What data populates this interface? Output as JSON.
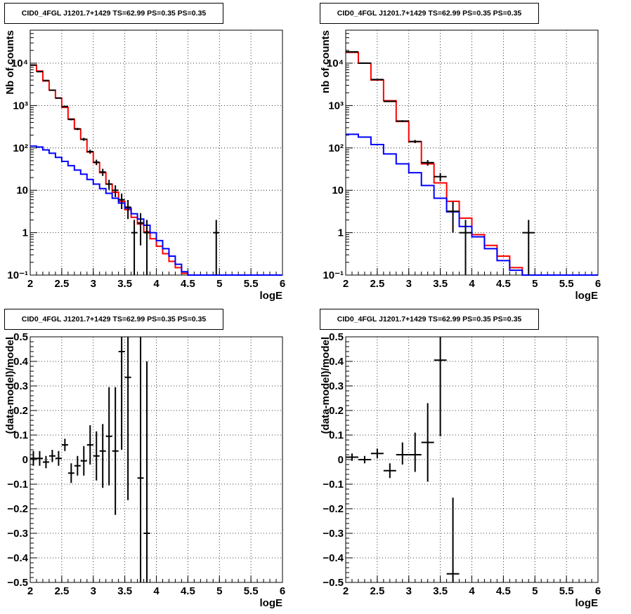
{
  "chart_data": [
    {
      "type": "line",
      "title": "CID0_4FGL J1201.7+1429 TS=62.99 PS=0.35 PS=0.35",
      "xlabel": "logE",
      "ylabel": "Nb of counts",
      "xlim": [
        2,
        6
      ],
      "ylim": [
        0.1,
        60000
      ],
      "yscale": "log",
      "grid": true,
      "x_ticks": [
        "2",
        "2.5",
        "3",
        "3.5",
        "4",
        "4.5",
        "5",
        "5.5",
        "6"
      ],
      "y_ticks": [
        {
          "value": 0.1,
          "label": "10⁻¹"
        },
        {
          "value": 1,
          "label": "1"
        },
        {
          "value": 10,
          "label": "10"
        },
        {
          "value": 100,
          "label": "10²"
        },
        {
          "value": 1000,
          "label": "10³"
        },
        {
          "value": 10000,
          "label": "10⁴"
        }
      ],
      "bin_width": 0.1,
      "series": [
        {
          "color": "#ff0000",
          "style": "step",
          "x": [
            2.0,
            2.1,
            2.2,
            2.3,
            2.4,
            2.5,
            2.6,
            2.7,
            2.8,
            2.9,
            3.0,
            3.1,
            3.2,
            3.3,
            3.4,
            3.5,
            3.6,
            3.7,
            3.8,
            3.9,
            4.0,
            4.1,
            4.2,
            4.3,
            4.4,
            4.5,
            4.6,
            4.7,
            4.8,
            4.9,
            5.0,
            5.1,
            5.2,
            5.3,
            5.4,
            5.5,
            5.6,
            5.7,
            5.8,
            5.9
          ],
          "values": [
            9000,
            6500,
            3800,
            2300,
            1500,
            900,
            480,
            280,
            160,
            80,
            45,
            26,
            14,
            9,
            5.5,
            3.5,
            2.3,
            1.6,
            1.05,
            0.72,
            0.48,
            0.32,
            0.21,
            0.15,
            0.11,
            0.1,
            0.1,
            0.1,
            0.1,
            0.1,
            0.1,
            0.1,
            0.1,
            0.1,
            0.1,
            0.1,
            0.1,
            0.1,
            0.1,
            0.1
          ]
        },
        {
          "color": "#0000ff",
          "style": "step",
          "x": [
            2.0,
            2.1,
            2.2,
            2.3,
            2.4,
            2.5,
            2.6,
            2.7,
            2.8,
            2.9,
            3.0,
            3.1,
            3.2,
            3.3,
            3.4,
            3.5,
            3.6,
            3.7,
            3.8,
            3.9,
            4.0,
            4.1,
            4.2,
            4.3,
            4.4,
            4.5,
            4.6,
            4.7,
            4.8,
            4.9,
            5.0,
            5.1,
            5.2,
            5.3,
            5.4,
            5.5,
            5.6,
            5.7,
            5.8,
            5.9
          ],
          "values": [
            110,
            105,
            90,
            75,
            60,
            48,
            38,
            30,
            24,
            18,
            14,
            11,
            8.5,
            6.5,
            5,
            3.8,
            2.8,
            2.1,
            1.5,
            1.0,
            0.65,
            0.42,
            0.28,
            0.18,
            0.12,
            0.1,
            0.1,
            0.1,
            0.1,
            0.1,
            0.1,
            0.1,
            0.1,
            0.1,
            0.1,
            0.1,
            0.1,
            0.1,
            0.1,
            0.1
          ]
        },
        {
          "color": "#000000",
          "style": "errorbar",
          "x": [
            2.05,
            2.15,
            2.25,
            2.35,
            2.45,
            2.55,
            2.65,
            2.75,
            2.85,
            2.95,
            3.05,
            3.15,
            3.25,
            3.35,
            3.45,
            3.55,
            3.65,
            3.75,
            3.85,
            4.95
          ],
          "values": [
            9000,
            6300,
            3900,
            2300,
            1500,
            950,
            470,
            280,
            160,
            82,
            46,
            27,
            14,
            10,
            6,
            4,
            1,
            1.7,
            1,
            1
          ],
          "err_low": [
            95,
            80,
            62,
            48,
            39,
            31,
            22,
            17,
            13,
            9,
            6.8,
            5.2,
            3.7,
            3.1,
            2.4,
            1.9,
            1,
            1.2,
            1,
            1
          ],
          "err_high": [
            95,
            80,
            62,
            48,
            39,
            31,
            22,
            17,
            13,
            9,
            6.8,
            5.2,
            3.7,
            3.1,
            2.4,
            1.9,
            1,
            1.2,
            1,
            1
          ]
        }
      ]
    },
    {
      "type": "line",
      "title": "CID0_4FGL J1201.7+1429 TS=62.99 PS=0.35 PS=0.35",
      "xlabel": "logE",
      "ylabel": "nb of counts",
      "xlim": [
        2,
        6
      ],
      "ylim": [
        0.1,
        60000
      ],
      "yscale": "log",
      "grid": true,
      "x_ticks": [
        "2",
        "2.5",
        "3",
        "3.5",
        "4",
        "4.5",
        "5",
        "5.5",
        "6"
      ],
      "y_ticks": [
        {
          "value": 0.1,
          "label": "10⁻¹"
        },
        {
          "value": 1,
          "label": "1"
        },
        {
          "value": 10,
          "label": "10"
        },
        {
          "value": 100,
          "label": "10²"
        },
        {
          "value": 1000,
          "label": "10³"
        },
        {
          "value": 10000,
          "label": "10⁴"
        }
      ],
      "bin_width": 0.2,
      "series": [
        {
          "color": "#ff0000",
          "style": "step",
          "x": [
            2.0,
            2.2,
            2.4,
            2.6,
            2.8,
            3.0,
            3.2,
            3.4,
            3.6,
            3.8,
            4.0,
            4.2,
            4.4,
            4.6,
            4.8,
            5.0,
            5.2,
            5.4,
            5.6,
            5.8
          ],
          "values": [
            18000,
            10000,
            4000,
            1300,
            420,
            140,
            42,
            15,
            5.5,
            2.2,
            0.9,
            0.5,
            0.28,
            0.15,
            0.1,
            0.1,
            0.1,
            0.1,
            0.1,
            0.1
          ]
        },
        {
          "color": "#0000ff",
          "style": "step",
          "x": [
            2.0,
            2.2,
            2.4,
            2.6,
            2.8,
            3.0,
            3.2,
            3.4,
            3.6,
            3.8,
            4.0,
            4.2,
            4.4,
            4.6,
            4.8,
            5.0,
            5.2,
            5.4,
            5.6,
            5.8
          ],
          "values": [
            210,
            180,
            120,
            72,
            42,
            26,
            13,
            6.5,
            3.1,
            1.4,
            0.8,
            0.42,
            0.22,
            0.13,
            0.1,
            0.1,
            0.1,
            0.1,
            0.1,
            0.1
          ]
        },
        {
          "color": "#000000",
          "style": "errorbar",
          "x": [
            2.1,
            2.3,
            2.5,
            2.7,
            2.9,
            3.1,
            3.3,
            3.5,
            3.7,
            3.9,
            4.9
          ],
          "values": [
            18500,
            10000,
            4100,
            1250,
            430,
            142,
            45,
            21,
            3.2,
            1,
            1
          ],
          "err_low": [
            136,
            100,
            64,
            35,
            21,
            12,
            6.7,
            4.6,
            2.2,
            1,
            1
          ],
          "err_high": [
            136,
            100,
            64,
            35,
            21,
            12,
            6.7,
            4.6,
            2.2,
            1,
            1
          ]
        }
      ]
    },
    {
      "type": "scatter",
      "title": "CID0_4FGL J1201.7+1429 TS=62.99 PS=0.35 PS=0.35",
      "xlabel": "logE",
      "ylabel": "(data-model)/model",
      "xlim": [
        2,
        6
      ],
      "ylim": [
        -0.5,
        0.5
      ],
      "grid": true,
      "x_ticks": [
        "2",
        "2.5",
        "3",
        "3.5",
        "4",
        "4.5",
        "5",
        "5.5",
        "6"
      ],
      "y_ticks": [
        {
          "value": -0.5,
          "label": "−0.5"
        },
        {
          "value": -0.4,
          "label": "−0.4"
        },
        {
          "value": -0.3,
          "label": "−0.3"
        },
        {
          "value": -0.2,
          "label": "−0.2"
        },
        {
          "value": -0.1,
          "label": "−0.1"
        },
        {
          "value": 0,
          "label": "0"
        },
        {
          "value": 0.1,
          "label": "0.1"
        },
        {
          "value": 0.2,
          "label": "0.2"
        },
        {
          "value": 0.3,
          "label": "0.3"
        },
        {
          "value": 0.4,
          "label": "0.4"
        },
        {
          "value": 0.5,
          "label": "0.5"
        }
      ],
      "bin_width": 0.1,
      "series": [
        {
          "color": "#000000",
          "style": "errorbar",
          "x": [
            2.05,
            2.15,
            2.25,
            2.35,
            2.45,
            2.55,
            2.65,
            2.75,
            2.85,
            2.95,
            3.05,
            3.15,
            3.25,
            3.35,
            3.45,
            3.55,
            3.75,
            3.85
          ],
          "values": [
            0.005,
            0.005,
            -0.01,
            0.015,
            0.005,
            0.06,
            -0.055,
            -0.025,
            -0.005,
            0.06,
            0.015,
            0.035,
            0.095,
            0.035,
            0.44,
            0.335,
            -0.075,
            -0.3
          ],
          "err_low": [
            0.03,
            0.03,
            0.025,
            0.025,
            0.03,
            0.025,
            0.04,
            0.04,
            0.06,
            0.08,
            0.1,
            0.15,
            0.2,
            0.26,
            0.4,
            0.5,
            0.45,
            0.7
          ],
          "err_high": [
            0.03,
            0.03,
            0.025,
            0.025,
            0.03,
            0.025,
            0.04,
            0.04,
            0.06,
            0.08,
            0.1,
            0.11,
            0.2,
            0.26,
            0.07,
            0.17,
            0.6,
            0.7
          ]
        }
      ]
    },
    {
      "type": "scatter",
      "title": "CID0_4FGL J1201.7+1429 TS=62.99 PS=0.35 PS=0.35",
      "xlabel": "logE",
      "ylabel": "(data-model)/model",
      "xlim": [
        2,
        6
      ],
      "ylim": [
        -0.5,
        0.5
      ],
      "grid": true,
      "x_ticks": [
        "2",
        "2.5",
        "3",
        "3.5",
        "4",
        "4.5",
        "5",
        "5.5",
        "6"
      ],
      "y_ticks": [
        {
          "value": -0.5,
          "label": "−0.5"
        },
        {
          "value": -0.4,
          "label": "−0.4"
        },
        {
          "value": -0.3,
          "label": "−0.3"
        },
        {
          "value": -0.2,
          "label": "−0.2"
        },
        {
          "value": -0.1,
          "label": "−0.1"
        },
        {
          "value": 0,
          "label": "0"
        },
        {
          "value": 0.1,
          "label": "0.1"
        },
        {
          "value": 0.2,
          "label": "0.2"
        },
        {
          "value": 0.3,
          "label": "0.3"
        },
        {
          "value": 0.4,
          "label": "0.4"
        },
        {
          "value": 0.5,
          "label": "0.5"
        }
      ],
      "bin_width": 0.2,
      "series": [
        {
          "color": "#000000",
          "style": "errorbar",
          "x": [
            2.1,
            2.3,
            2.5,
            2.7,
            2.9,
            3.1,
            3.3,
            3.5,
            3.7
          ],
          "values": [
            0.01,
            0.0,
            0.025,
            -0.045,
            0.02,
            0.02,
            0.07,
            0.405,
            -0.465
          ],
          "err_low": [
            0.015,
            0.015,
            0.02,
            0.03,
            0.04,
            0.07,
            0.16,
            0.31,
            0.4
          ],
          "err_high": [
            0.015,
            0.015,
            0.02,
            0.03,
            0.05,
            0.09,
            0.16,
            0.25,
            0.31
          ]
        }
      ]
    }
  ]
}
